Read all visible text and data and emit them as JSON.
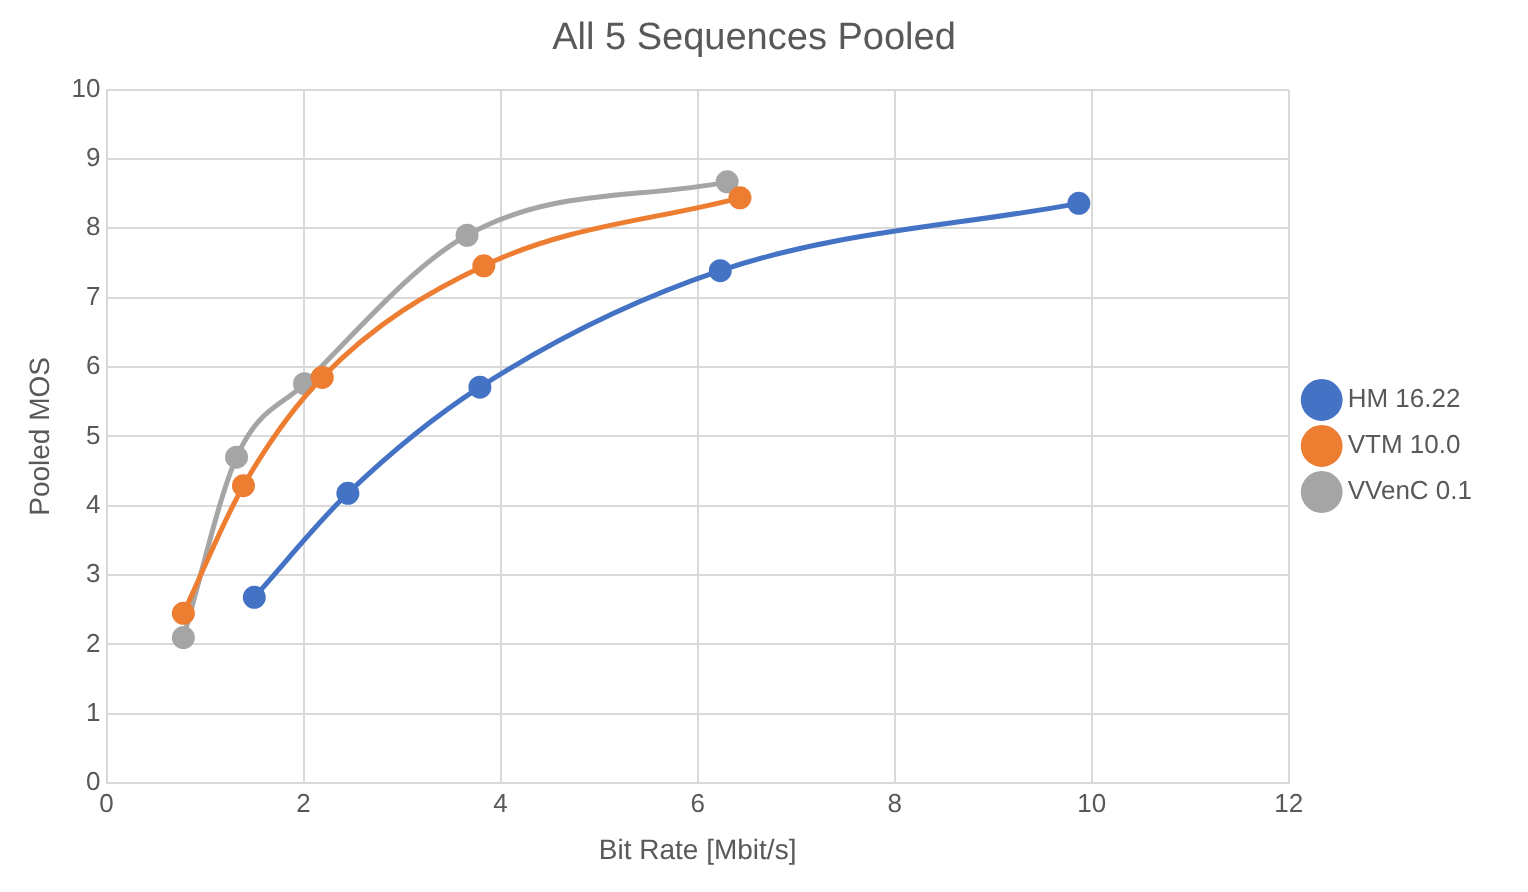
{
  "chart_data": {
    "type": "line",
    "title": "All 5 Sequences Pooled",
    "xlabel": "Bit Rate [Mbit/s]",
    "ylabel": "Pooled MOS",
    "xlim": [
      0,
      12
    ],
    "xticks": [
      0,
      2,
      4,
      6,
      8,
      10,
      12
    ],
    "ylim": [
      0,
      10
    ],
    "yticks": [
      0,
      1,
      2,
      3,
      4,
      5,
      6,
      7,
      8,
      9,
      10
    ],
    "grid": true,
    "legend": "right",
    "marker": "circle",
    "series": [
      {
        "name": "HM 16.22",
        "color": "#4472c4",
        "x": [
          1.5,
          2.45,
          3.79,
          6.23,
          9.87
        ],
        "values": [
          2.68,
          4.18,
          5.71,
          7.39,
          8.36
        ]
      },
      {
        "name": "VTM 10.0",
        "color": "#ed7d31",
        "x": [
          0.78,
          1.39,
          2.19,
          3.83,
          6.43
        ],
        "values": [
          2.45,
          4.29,
          5.85,
          7.46,
          8.44
        ]
      },
      {
        "name": "VVenC 0.1",
        "color": "#a5a5a5",
        "x": [
          0.78,
          1.32,
          2.01,
          3.66,
          6.3
        ],
        "values": [
          2.1,
          4.7,
          5.76,
          7.9,
          8.67
        ]
      }
    ]
  }
}
